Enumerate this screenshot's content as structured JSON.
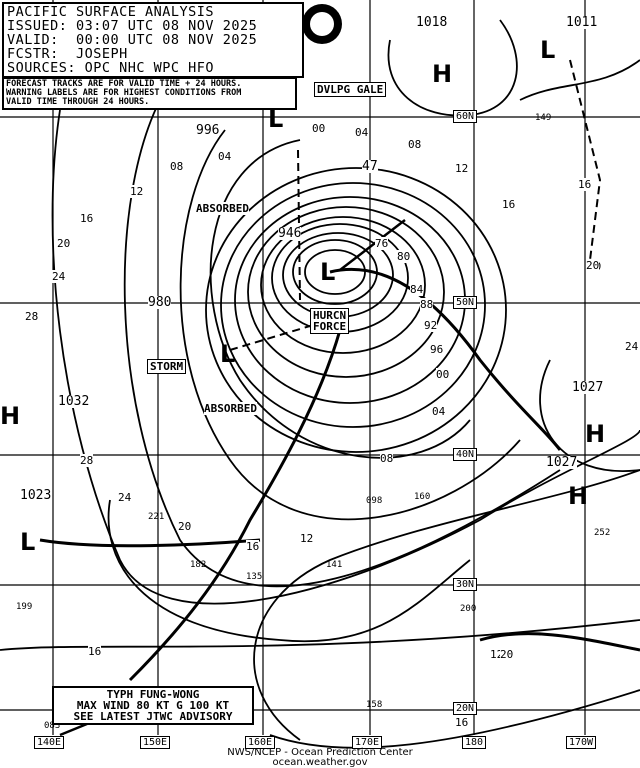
{
  "header": {
    "title": "PACIFIC SURFACE ANALYSIS",
    "issued": "ISSUED: 03:07 UTC 08 NOV 2025",
    "valid": "VALID:  00:00 UTC 08 NOV 2025",
    "forecaster": "FCSTR:  JOSEPH",
    "sources": "SOURCES: OPC NHC WPC HFO"
  },
  "note": "FORECAST TRACKS ARE FOR VALID TIME + 24 HOURS.\nWARNING LABELS ARE FOR HIGHEST CONDITIONS FROM\nVALID TIME THROUGH 24 HOURS.",
  "logo": "NOAA",
  "grid_labels": {
    "lon": [
      "140E",
      "150E",
      "160E",
      "170E",
      "180",
      "170W"
    ],
    "lat": [
      "20N",
      "30N",
      "40N",
      "50N",
      "60N"
    ]
  },
  "warnings": {
    "dvlpg_gale": "DVLPG GALE",
    "hurcn_force_1": "HURCN",
    "hurcn_force_2": "FORCE",
    "storm": "STORM",
    "absorbed_1": "ABSORBED",
    "absorbed_2": "ABSORBED"
  },
  "pressure_centers": {
    "p1018": "1018",
    "p1011": "1011",
    "p996": "996",
    "p47": "47",
    "p946": "946",
    "p980": "980",
    "p1032": "1032",
    "p1023": "1023",
    "p1027a": "1027",
    "p1027b": "1027"
  },
  "isobar_labels": [
    "00",
    "04",
    "08",
    "12",
    "16",
    "20",
    "24",
    "28",
    "12",
    "08",
    "04",
    "16",
    "20",
    "24",
    "28",
    "76",
    "80",
    "84",
    "88",
    "92",
    "96",
    "00",
    "04",
    "08",
    "16",
    "20",
    "24",
    "16",
    "12",
    "20",
    "16",
    "12",
    "16",
    "20"
  ],
  "centers": {
    "H": "H",
    "L": "L"
  },
  "obs": [
    "149",
    "098",
    "160",
    "221",
    "182",
    "135",
    "141",
    "199",
    "200",
    "252",
    "158",
    "083"
  ],
  "typhoon": {
    "line1": "TYPH FUNG-WONG",
    "line2": "MAX WIND 80 KT G 100 KT",
    "line3": "SEE LATEST JTWC ADVISORY"
  },
  "footer": {
    "line1": "NWS/NCEP - Ocean Prediction Center",
    "line2": "ocean.weather.gov"
  }
}
